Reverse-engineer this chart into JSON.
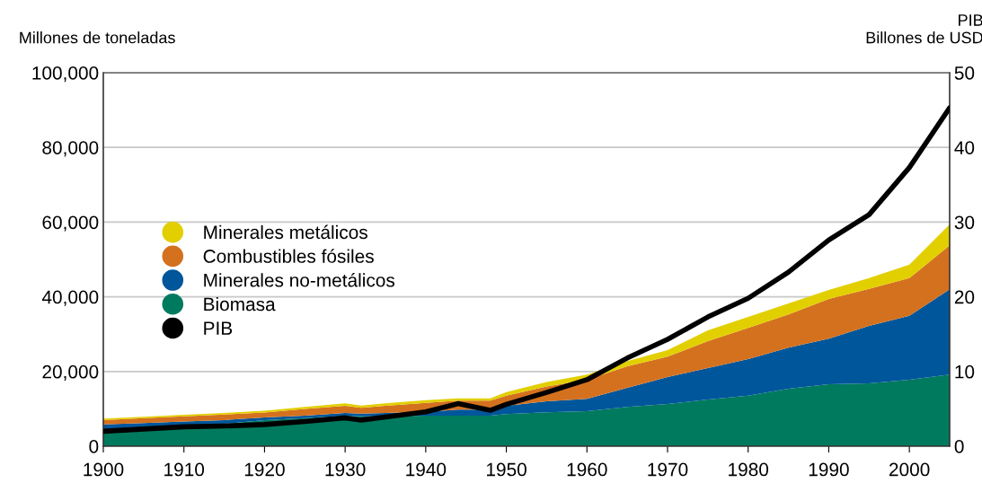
{
  "chart_data": {
    "type": "area",
    "stacked": true,
    "ylabel": "Millones de toneladas",
    "y2label": "PIB\nBillones de USD",
    "x": [
      1900,
      1905,
      1910,
      1915,
      1920,
      1925,
      1930,
      1932,
      1935,
      1940,
      1944,
      1948,
      1950,
      1955,
      1960,
      1965,
      1970,
      1975,
      1980,
      1985,
      1990,
      1995,
      2000,
      2005
    ],
    "series": [
      {
        "name": "Biomasa",
        "color": "#007a5e",
        "values": [
          4500,
          5000,
          5500,
          6000,
          7000,
          7500,
          8200,
          8000,
          8000,
          8200,
          8200,
          8200,
          8600,
          9100,
          9400,
          10500,
          11300,
          12500,
          13500,
          15400,
          16600,
          16800,
          17800,
          19200
        ]
      },
      {
        "name": "Minerales no-metálicos",
        "color": "#00569b",
        "values": [
          1300,
          1200,
          1100,
          1000,
          700,
          700,
          700,
          700,
          900,
          1000,
          1600,
          1600,
          2200,
          2900,
          3300,
          5100,
          7200,
          8400,
          9800,
          11000,
          12200,
          15400,
          17100,
          22800
        ]
      },
      {
        "name": "Combustibles fósiles",
        "color": "#d4711f",
        "values": [
          1200,
          1300,
          1400,
          1500,
          1300,
          1800,
          1900,
          1600,
          1900,
          2400,
          2400,
          2400,
          2700,
          4000,
          5100,
          5800,
          5500,
          7200,
          8400,
          8900,
          10600,
          9900,
          10100,
          11800
        ]
      },
      {
        "name": "Minerales metálicos",
        "color": "#e2cf00",
        "values": [
          400,
          400,
          400,
          400,
          500,
          500,
          700,
          600,
          700,
          700,
          600,
          600,
          1000,
          1200,
          1400,
          1400,
          1700,
          2900,
          2900,
          2900,
          2400,
          2900,
          3600,
          5600
        ]
      },
      {
        "name": "PIB",
        "type": "line",
        "axis": "y2",
        "color": "#000000",
        "values": [
          2.0,
          2.3,
          2.6,
          2.7,
          2.9,
          3.3,
          3.8,
          3.5,
          3.9,
          4.6,
          5.7,
          4.8,
          5.6,
          7.2,
          8.9,
          11.8,
          14.3,
          17.3,
          19.8,
          23.3,
          27.6,
          31.0,
          37.3,
          45.3
        ]
      }
    ],
    "xlim": [
      1900,
      2005
    ],
    "xticks": [
      1900,
      1910,
      1920,
      1930,
      1940,
      1950,
      1960,
      1970,
      1980,
      1990,
      2000
    ],
    "ylim": [
      0,
      100000
    ],
    "yticks": [
      {
        "value": 0,
        "label": "0"
      },
      {
        "value": 20000,
        "label": "20,000"
      },
      {
        "value": 40000,
        "label": "40,000"
      },
      {
        "value": 60000,
        "label": "60,000"
      },
      {
        "value": 80000,
        "label": "80,000"
      },
      {
        "value": 100000,
        "label": "100,000"
      }
    ],
    "y2lim": [
      0,
      50
    ],
    "y2ticks": [
      0,
      10,
      20,
      30,
      40,
      50
    ],
    "grid": "y",
    "legend": "left"
  }
}
